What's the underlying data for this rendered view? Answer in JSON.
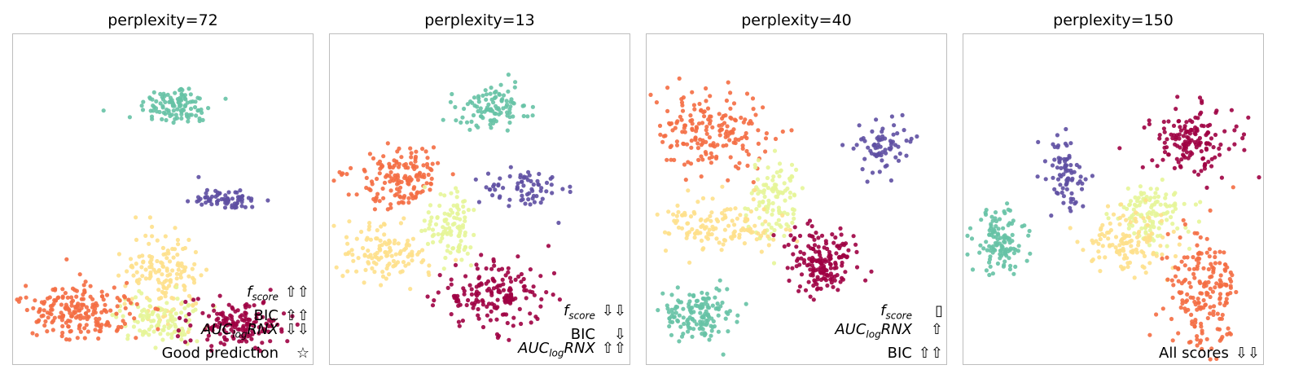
{
  "chart_data": [
    {
      "type": "scatter",
      "title": "perplexity=72",
      "annotations": [
        {
          "name": "f",
          "sub": "score",
          "italic": true,
          "arrows": "⇧⇧"
        },
        {
          "name": "BIC",
          "sub": "",
          "italic": false,
          "arrows": "⇧⇧"
        },
        {
          "name": "AUC",
          "sub": "log",
          "suffix": "RNX",
          "italic": true,
          "arrows": "⇩⇩"
        },
        {
          "name": "Good prediction",
          "sub": "",
          "italic": false,
          "arrows": "☆"
        }
      ],
      "clusters": [
        {
          "color": "#66c2a5",
          "cx": 200,
          "cy": 88,
          "rx": 40,
          "ry": 22,
          "n": 110
        },
        {
          "color": "#5e4fa2",
          "cx": 262,
          "cy": 203,
          "rx": 40,
          "ry": 12,
          "n": 70
        },
        {
          "color": "#fee08b",
          "cx": 185,
          "cy": 295,
          "rx": 40,
          "ry": 55,
          "n": 150
        },
        {
          "color": "#e6f598",
          "cx": 178,
          "cy": 350,
          "rx": 45,
          "ry": 25,
          "n": 110
        },
        {
          "color": "#f46d43",
          "cx": 82,
          "cy": 340,
          "rx": 58,
          "ry": 30,
          "n": 200
        },
        {
          "color": "#9e0142",
          "cx": 275,
          "cy": 355,
          "rx": 55,
          "ry": 25,
          "n": 150
        }
      ]
    },
    {
      "type": "scatter",
      "title": "perplexity=13",
      "annotations": [
        {
          "name": "f",
          "sub": "score",
          "italic": true,
          "arrows": "⇩⇩"
        },
        {
          "name": "BIC",
          "sub": "",
          "italic": false,
          "arrows": "⇩"
        },
        {
          "name": "AUC",
          "sub": "log",
          "suffix": "RNX",
          "italic": true,
          "arrows": "⇧⇧"
        }
      ],
      "clusters": [
        {
          "color": "#66c2a5",
          "cx": 198,
          "cy": 90,
          "rx": 42,
          "ry": 28,
          "n": 100
        },
        {
          "color": "#5e4fa2",
          "cx": 240,
          "cy": 190,
          "rx": 45,
          "ry": 22,
          "n": 70
        },
        {
          "color": "#f46d43",
          "cx": 88,
          "cy": 175,
          "rx": 50,
          "ry": 35,
          "n": 150
        },
        {
          "color": "#e6f598",
          "cx": 150,
          "cy": 240,
          "rx": 30,
          "ry": 40,
          "n": 100
        },
        {
          "color": "#fee08b",
          "cx": 70,
          "cy": 270,
          "rx": 48,
          "ry": 30,
          "n": 120
        },
        {
          "color": "#9e0142",
          "cx": 200,
          "cy": 320,
          "rx": 60,
          "ry": 38,
          "n": 170
        }
      ]
    },
    {
      "type": "scatter",
      "title": "perplexity=40",
      "annotations": [
        {
          "name": "f",
          "sub": "score",
          "italic": true,
          "arrows": "▯"
        },
        {
          "name": "AUC",
          "sub": "log",
          "suffix": "RNX",
          "italic": true,
          "arrows": "⇧"
        },
        {
          "name": "BIC",
          "sub": "",
          "italic": false,
          "arrows": "⇧⇧"
        }
      ],
      "clusters": [
        {
          "color": "#f46d43",
          "cx": 80,
          "cy": 120,
          "rx": 62,
          "ry": 45,
          "n": 180
        },
        {
          "color": "#5e4fa2",
          "cx": 290,
          "cy": 140,
          "rx": 30,
          "ry": 30,
          "n": 70
        },
        {
          "color": "#e6f598",
          "cx": 155,
          "cy": 205,
          "rx": 30,
          "ry": 48,
          "n": 110
        },
        {
          "color": "#fee08b",
          "cx": 90,
          "cy": 235,
          "rx": 60,
          "ry": 30,
          "n": 130
        },
        {
          "color": "#9e0142",
          "cx": 215,
          "cy": 280,
          "rx": 40,
          "ry": 35,
          "n": 170
        },
        {
          "color": "#66c2a5",
          "cx": 65,
          "cy": 345,
          "rx": 40,
          "ry": 30,
          "n": 140
        }
      ]
    },
    {
      "type": "scatter",
      "title": "perplexity=150",
      "annotations": [
        {
          "name": "All scores",
          "sub": "",
          "italic": false,
          "arrows": "⇩⇩"
        }
      ],
      "clusters": [
        {
          "color": "#9e0142",
          "cx": 280,
          "cy": 130,
          "rx": 50,
          "ry": 38,
          "n": 150
        },
        {
          "color": "#5e4fa2",
          "cx": 125,
          "cy": 170,
          "rx": 20,
          "ry": 40,
          "n": 80
        },
        {
          "color": "#66c2a5",
          "cx": 45,
          "cy": 255,
          "rx": 30,
          "ry": 35,
          "n": 120
        },
        {
          "color": "#e6f598",
          "cx": 230,
          "cy": 220,
          "rx": 45,
          "ry": 35,
          "n": 120
        },
        {
          "color": "#fee08b",
          "cx": 200,
          "cy": 255,
          "rx": 50,
          "ry": 30,
          "n": 120
        },
        {
          "color": "#f46d43",
          "cx": 295,
          "cy": 310,
          "rx": 40,
          "ry": 65,
          "n": 190
        }
      ]
    }
  ]
}
